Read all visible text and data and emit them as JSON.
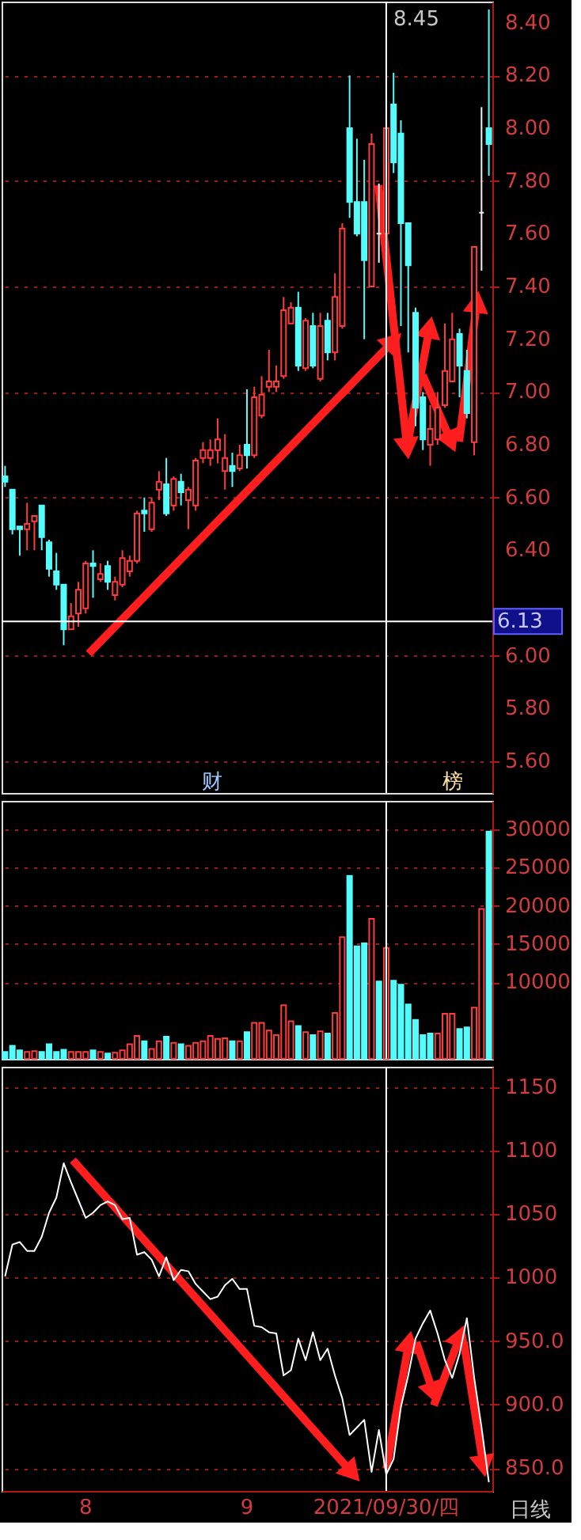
{
  "chart_data": [
    {
      "type": "candlestick",
      "categories": [
        null,
        null,
        null,
        null,
        null,
        null,
        null,
        null,
        null,
        null,
        null,
        "8",
        null,
        null,
        null,
        null,
        null,
        null,
        null,
        null,
        null,
        null,
        null,
        null,
        null,
        null,
        null,
        null,
        null,
        null,
        null,
        null,
        null,
        "9",
        null,
        null,
        null,
        null,
        null,
        null,
        null,
        null,
        null,
        null,
        null,
        null,
        null,
        null,
        null,
        null,
        null,
        null,
        "2021/09/30/四",
        null,
        null,
        null,
        null,
        null,
        null,
        null,
        null,
        null,
        null,
        null,
        null,
        null,
        null
      ],
      "ohlc": [
        [
          6.68,
          6.72,
          6.64,
          6.66
        ],
        [
          6.63,
          6.63,
          6.46,
          6.48
        ],
        [
          6.49,
          6.49,
          6.38,
          6.48
        ],
        [
          6.48,
          6.58,
          6.4,
          6.5
        ],
        [
          6.51,
          6.53,
          6.4,
          6.53
        ],
        [
          6.57,
          6.57,
          6.4,
          6.45
        ],
        [
          6.43,
          6.44,
          6.3,
          6.33
        ],
        [
          6.32,
          6.39,
          6.25,
          6.27
        ],
        [
          6.27,
          6.27,
          6.04,
          6.1
        ],
        [
          6.1,
          6.2,
          6.1,
          6.15
        ],
        [
          6.16,
          6.28,
          6.11,
          6.25
        ],
        [
          6.18,
          6.36,
          6.16,
          6.35
        ],
        [
          6.35,
          6.4,
          6.22,
          6.34
        ],
        [
          6.29,
          6.35,
          6.28,
          6.31
        ],
        [
          6.34,
          6.36,
          6.25,
          6.28
        ],
        [
          6.23,
          6.3,
          6.21,
          6.28
        ],
        [
          6.27,
          6.4,
          6.26,
          6.37
        ],
        [
          6.32,
          6.38,
          6.3,
          6.36
        ],
        [
          6.36,
          6.55,
          6.35,
          6.54
        ],
        [
          6.55,
          6.6,
          6.47,
          6.54
        ],
        [
          6.48,
          6.6,
          6.47,
          6.58
        ],
        [
          6.63,
          6.7,
          6.59,
          6.66
        ],
        [
          6.65,
          6.75,
          6.53,
          6.54
        ],
        [
          6.57,
          6.68,
          6.55,
          6.67
        ],
        [
          6.66,
          6.69,
          6.57,
          6.62
        ],
        [
          6.59,
          6.64,
          6.48,
          6.63
        ],
        [
          6.57,
          6.75,
          6.55,
          6.74
        ],
        [
          6.75,
          6.81,
          6.73,
          6.78
        ],
        [
          6.75,
          6.82,
          6.72,
          6.78
        ],
        [
          6.78,
          6.9,
          6.73,
          6.82
        ],
        [
          6.7,
          6.84,
          6.63,
          6.75
        ],
        [
          6.72,
          6.77,
          6.64,
          6.7
        ],
        [
          6.71,
          6.8,
          6.7,
          6.76
        ],
        [
          6.8,
          7.01,
          6.71,
          6.76
        ],
        [
          6.76,
          7.02,
          6.75,
          6.98
        ],
        [
          6.91,
          7.06,
          6.9,
          6.99
        ],
        [
          7.02,
          7.16,
          7.0,
          7.04
        ],
        [
          7.02,
          7.1,
          7.0,
          7.04
        ],
        [
          7.06,
          7.36,
          7.05,
          7.31
        ],
        [
          7.26,
          7.34,
          7.26,
          7.32
        ],
        [
          7.32,
          7.38,
          7.08,
          7.1
        ],
        [
          7.09,
          7.28,
          7.08,
          7.27
        ],
        [
          7.25,
          7.3,
          7.09,
          7.1
        ],
        [
          7.05,
          7.3,
          7.04,
          7.25
        ],
        [
          7.27,
          7.3,
          7.12,
          7.15
        ],
        [
          7.15,
          7.45,
          7.12,
          7.36
        ],
        [
          7.25,
          7.64,
          7.24,
          7.62
        ],
        [
          8.0,
          8.2,
          7.66,
          7.72
        ],
        [
          7.72,
          7.96,
          7.59,
          7.6
        ],
        [
          7.72,
          7.88,
          7.2,
          7.5
        ],
        [
          7.4,
          7.98,
          7.4,
          7.94
        ],
        [
          7.6,
          7.79,
          7.49,
          7.6
        ],
        [
          7.6,
          8.0,
          7.54,
          8.0
        ],
        [
          8.09,
          8.21,
          7.83,
          7.87
        ],
        [
          7.98,
          8.03,
          7.25,
          7.64
        ],
        [
          7.64,
          7.64,
          7.15,
          7.48
        ],
        [
          7.3,
          7.32,
          6.87,
          6.94
        ],
        [
          6.98,
          7.0,
          6.78,
          6.82
        ],
        [
          6.8,
          6.95,
          6.72,
          6.86
        ],
        [
          6.82,
          7.0,
          6.8,
          6.94
        ],
        [
          6.95,
          7.26,
          6.94,
          7.08
        ],
        [
          7.04,
          7.3,
          7.04,
          7.2
        ],
        [
          7.22,
          7.24,
          6.98,
          7.1
        ],
        [
          7.08,
          7.16,
          6.9,
          6.92
        ],
        [
          6.81,
          7.55,
          6.76,
          7.55
        ],
        [
          7.68,
          8.08,
          7.46,
          7.68
        ],
        [
          8.0,
          8.45,
          7.82,
          7.94
        ]
      ],
      "colors": [
        "#54fcfc",
        "#54fcfc",
        "#54fcfc",
        "#ff3c3c",
        "#ff3c3c",
        "#54fcfc",
        "#54fcfc",
        "#54fcfc",
        "#54fcfc",
        "#ff3c3c",
        "#ff3c3c",
        "#ff3c3c",
        "#54fcfc",
        "#ff3c3c",
        "#54fcfc",
        "#ff3c3c",
        "#ff3c3c",
        "#ff3c3c",
        "#ff3c3c",
        "#54fcfc",
        "#ff3c3c",
        "#ff3c3c",
        "#54fcfc",
        "#ff3c3c",
        "#54fcfc",
        "#ff3c3c",
        "#ff3c3c",
        "#ff3c3c",
        "#ff3c3c",
        "#ff3c3c",
        "#ff3c3c",
        "#54fcfc",
        "#ff3c3c",
        "#54fcfc",
        "#ff3c3c",
        "#ff3c3c",
        "#ff3c3c",
        "#ff3c3c",
        "#ff3c3c",
        "#ff3c3c",
        "#54fcfc",
        "#ff3c3c",
        "#54fcfc",
        "#ff3c3c",
        "#54fcfc",
        "#ff3c3c",
        "#ff3c3c",
        "#54fcfc",
        "#54fcfc",
        "#54fcfc",
        "#ff3c3c",
        "#f0f0f0",
        "#ff3c3c",
        "#54fcfc",
        "#54fcfc",
        "#54fcfc",
        "#54fcfc",
        "#54fcfc",
        "#ff3c3c",
        "#ff3c3c",
        "#ff3c3c",
        "#ff3c3c",
        "#54fcfc",
        "#54fcfc",
        "#ff3c3c",
        "#f0f0f0",
        "#54fcfc"
      ],
      "ylim": [
        5.48,
        8.48
      ],
      "yticks": [
        {
          "value": 5.6,
          "label": "5.60"
        },
        {
          "value": 5.8,
          "label": "5.80"
        },
        {
          "value": 6.0,
          "label": "6.00"
        },
        {
          "value": 6.4,
          "label": "6.40"
        },
        {
          "value": 6.6,
          "label": "6.60"
        },
        {
          "value": 6.8,
          "label": "6.80"
        },
        {
          "value": 7.0,
          "label": "7.00"
        },
        {
          "value": 7.2,
          "label": "7.20"
        },
        {
          "value": 7.4,
          "label": "7.40"
        },
        {
          "value": 7.6,
          "label": "7.60"
        },
        {
          "value": 7.8,
          "label": "7.80"
        },
        {
          "value": 8.0,
          "label": "8.00"
        },
        {
          "value": 8.2,
          "label": "8.20"
        },
        {
          "value": 8.4,
          "label": "8.40"
        }
      ],
      "grid": "y",
      "tick_labels": "y",
      "ref_lines": [
        {
          "axis": "y",
          "value": 6.13,
          "label": "6.13",
          "color": "#ffffff"
        },
        {
          "axis": "x",
          "value": "2021/09/30/四",
          "color": "#ffffff"
        }
      ],
      "annotations": [
        "8.45",
        "财",
        "榜"
      ]
    },
    {
      "type": "bar",
      "categories": [
        null,
        null,
        null,
        null,
        null,
        null,
        null,
        null,
        null,
        null,
        null,
        "8",
        null,
        null,
        null,
        null,
        null,
        null,
        null,
        null,
        null,
        null,
        null,
        null,
        null,
        null,
        null,
        null,
        null,
        null,
        null,
        null,
        null,
        "9",
        null,
        null,
        null,
        null,
        null,
        null,
        null,
        null,
        null,
        null,
        null,
        null,
        null,
        null,
        null,
        null,
        null,
        null,
        "2021/09/30/四",
        null,
        null,
        null,
        null,
        null,
        null,
        null,
        null,
        null,
        null,
        null,
        null,
        null,
        null
      ],
      "values": [
        900,
        1700,
        1100,
        900,
        1000,
        900,
        1900,
        900,
        1200,
        900,
        900,
        900,
        1100,
        900,
        700,
        800,
        1100,
        1900,
        3000,
        2300,
        1300,
        2300,
        2900,
        2100,
        1900,
        1700,
        2100,
        2300,
        3000,
        2600,
        2700,
        2300,
        2300,
        3500,
        4700,
        4700,
        3700,
        3100,
        7000,
        4900,
        4300,
        3500,
        3100,
        3600,
        3300,
        6000,
        15900,
        23900,
        14700,
        15100,
        18300,
        10100,
        14500,
        10200,
        9700,
        7100,
        5100,
        3100,
        3300,
        3300,
        5900,
        5900,
        3900,
        4100,
        6700,
        19600,
        29700
      ],
      "colors": [
        "#54fcfc",
        "#54fcfc",
        "#54fcfc",
        "#ff3c3c",
        "#ff3c3c",
        "#54fcfc",
        "#54fcfc",
        "#54fcfc",
        "#54fcfc",
        "#ff3c3c",
        "#ff3c3c",
        "#ff3c3c",
        "#54fcfc",
        "#ff3c3c",
        "#54fcfc",
        "#ff3c3c",
        "#ff3c3c",
        "#ff3c3c",
        "#ff3c3c",
        "#54fcfc",
        "#ff3c3c",
        "#ff3c3c",
        "#54fcfc",
        "#ff3c3c",
        "#54fcfc",
        "#ff3c3c",
        "#ff3c3c",
        "#ff3c3c",
        "#ff3c3c",
        "#ff3c3c",
        "#ff3c3c",
        "#54fcfc",
        "#ff3c3c",
        "#54fcfc",
        "#ff3c3c",
        "#ff3c3c",
        "#ff3c3c",
        "#ff3c3c",
        "#ff3c3c",
        "#ff3c3c",
        "#54fcfc",
        "#ff3c3c",
        "#54fcfc",
        "#ff3c3c",
        "#54fcfc",
        "#ff3c3c",
        "#ff3c3c",
        "#54fcfc",
        "#54fcfc",
        "#54fcfc",
        "#ff3c3c",
        "#54fcfc",
        "#ff3c3c",
        "#54fcfc",
        "#54fcfc",
        "#54fcfc",
        "#54fcfc",
        "#54fcfc",
        "#54fcfc",
        "#ff3c3c",
        "#ff3c3c",
        "#ff3c3c",
        "#54fcfc",
        "#54fcfc",
        "#ff3c3c",
        "#ff3c3c",
        "#54fcfc"
      ],
      "ylim": [
        0,
        33700
      ],
      "yticks": [
        10000,
        15000,
        20000,
        25000,
        30000
      ],
      "grid": "y",
      "tick_labels": "y",
      "ref_lines": [
        {
          "axis": "x",
          "value": "2021/09/30/四",
          "color": "#ffffff"
        }
      ]
    },
    {
      "type": "line",
      "categories": [
        null,
        null,
        null,
        null,
        null,
        null,
        null,
        null,
        null,
        null,
        null,
        "8",
        null,
        null,
        null,
        null,
        null,
        null,
        null,
        null,
        null,
        null,
        null,
        null,
        null,
        null,
        null,
        null,
        null,
        null,
        null,
        null,
        null,
        "9",
        null,
        null,
        null,
        null,
        null,
        null,
        null,
        null,
        null,
        null,
        null,
        null,
        null,
        null,
        null,
        null,
        null,
        null,
        "2021/09/30/四",
        null,
        null,
        null,
        null,
        null,
        null,
        null,
        null,
        null,
        null,
        null,
        null,
        null,
        null
      ],
      "series": [
        {
          "color": "#ffffff",
          "values": [
            1001,
            1026,
            1028,
            1021,
            1021,
            1032,
            1051,
            1063,
            1090,
            1075,
            1061,
            1047,
            1051,
            1057,
            1060,
            1057,
            1046,
            1047,
            1018,
            1020,
            1014,
            1001,
            1016,
            998,
            1006,
            1005,
            995,
            989,
            983,
            985,
            994,
            999,
            991,
            991,
            962,
            961,
            957,
            956,
            923,
            927,
            952,
            935,
            957,
            935,
            944,
            923,
            905,
            876,
            882,
            888,
            847,
            880,
            845,
            857,
            898,
            923,
            952,
            964,
            974,
            956,
            935,
            921,
            940,
            968,
            921,
            882,
            839
          ]
        }
      ],
      "ylim": [
        832,
        1166
      ],
      "yticks": [
        1150,
        1100,
        1050,
        1000,
        {
          "value": 950,
          "label": "950.0"
        },
        {
          "value": 900,
          "label": "900.0"
        },
        {
          "value": 850,
          "label": "850.0"
        }
      ],
      "grid": "y",
      "ref_lines": [
        {
          "axis": "x",
          "value": "2021/09/30/四",
          "color": "#ffffff"
        }
      ],
      "annotations": [
        "日线"
      ]
    }
  ]
}
